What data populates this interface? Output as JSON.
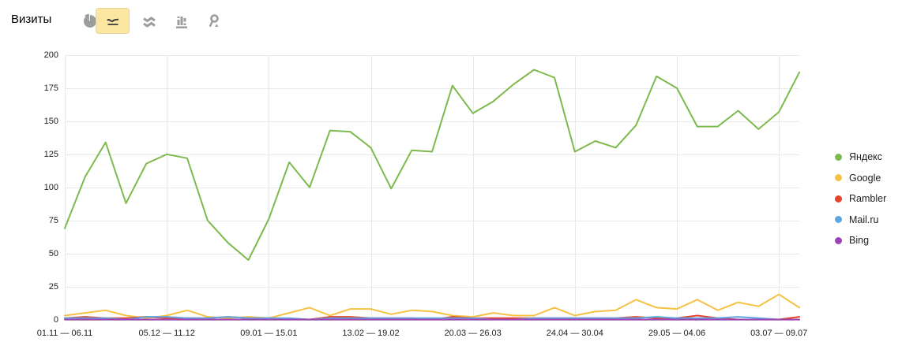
{
  "header": {
    "title": "Визиты",
    "toolbar": {
      "selected_bg": "#fbe7a1",
      "buttons": [
        {
          "tool": "pie",
          "icon": "pie-chart-icon",
          "selected": false
        },
        {
          "tool": "line",
          "icon": "line-chart-icon",
          "selected": true
        },
        {
          "tool": "stacked-area",
          "icon": "stacked-area-icon",
          "selected": false
        },
        {
          "tool": "columns",
          "icon": "column-chart-icon",
          "selected": false
        },
        {
          "tool": "map",
          "icon": "map-pin-icon",
          "selected": false
        }
      ]
    }
  },
  "chart_data": {
    "type": "line",
    "title": "Визиты",
    "ylim": [
      0,
      200
    ],
    "grid": true,
    "legend_position": "right",
    "y_ticks": [
      0,
      25,
      50,
      75,
      100,
      125,
      150,
      175,
      200
    ],
    "x_ticks": [
      {
        "index": 0,
        "label": "01.11 — 06.11"
      },
      {
        "index": 5,
        "label": "05.12 — 11.12"
      },
      {
        "index": 10,
        "label": "09.01 — 15.01"
      },
      {
        "index": 15,
        "label": "13.02 — 19.02"
      },
      {
        "index": 20,
        "label": "20.03 — 26.03"
      },
      {
        "index": 25,
        "label": "24.04 — 30.04"
      },
      {
        "index": 30,
        "label": "29.05 — 04.06"
      },
      {
        "index": 35,
        "label": "03.07 — 09.07"
      }
    ],
    "series": [
      {
        "name": "Яндекс",
        "color": "#7dba4d",
        "values": [
          69,
          108,
          134,
          88,
          118,
          125,
          122,
          75,
          58,
          45,
          76,
          119,
          100,
          143,
          142,
          130,
          99,
          128,
          127,
          177,
          156,
          165,
          178,
          189,
          183,
          127,
          135,
          130,
          147,
          184,
          175,
          146,
          146,
          158,
          144,
          157,
          187
        ]
      },
      {
        "name": "Google",
        "color": "#f6c143",
        "values": [
          3,
          5,
          7,
          3,
          1,
          3,
          7,
          2,
          1,
          2,
          1,
          5,
          9,
          3,
          8,
          8,
          4,
          7,
          6,
          3,
          2,
          5,
          3,
          3,
          9,
          3,
          6,
          7,
          15,
          9,
          8,
          15,
          7,
          13,
          10,
          19,
          9
        ]
      },
      {
        "name": "Rambler",
        "color": "#e6432d",
        "values": [
          1,
          2,
          1,
          1,
          2,
          1,
          1,
          1,
          2,
          1,
          1,
          0,
          0,
          2,
          2,
          1,
          1,
          1,
          0,
          2,
          1,
          1,
          1,
          1,
          1,
          1,
          1,
          1,
          2,
          1,
          1,
          3,
          1,
          0,
          0,
          0,
          2
        ]
      },
      {
        "name": "Mail.ru",
        "color": "#5fa6df",
        "values": [
          1,
          1,
          1,
          0,
          2,
          2,
          1,
          1,
          2,
          1,
          1,
          1,
          0,
          1,
          1,
          1,
          1,
          1,
          1,
          1,
          1,
          0,
          0,
          1,
          1,
          1,
          1,
          1,
          1,
          2,
          1,
          1,
          1,
          2,
          1,
          0,
          0
        ]
      },
      {
        "name": "Bing",
        "color": "#9f44b4",
        "values": [
          0,
          0,
          0,
          0,
          0,
          0,
          0,
          0,
          0,
          0,
          0,
          0,
          0,
          0,
          0,
          0,
          0,
          0,
          0,
          0,
          0,
          0,
          0,
          0,
          0,
          0,
          0,
          0,
          0,
          0,
          0,
          0,
          0,
          0,
          0,
          0,
          0
        ]
      }
    ]
  }
}
